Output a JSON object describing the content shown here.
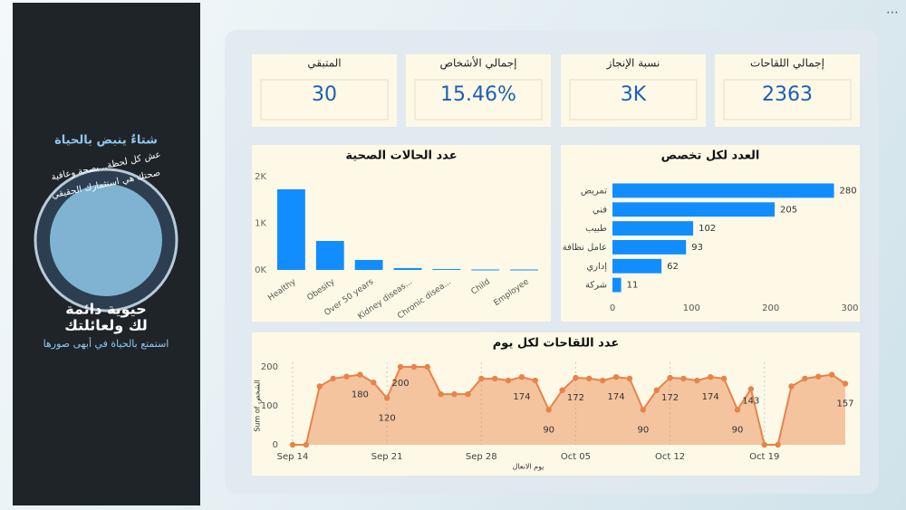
{
  "sidebar": {
    "headline": "شتاءٌ ينبض بالحياة",
    "tagline1": "عش كل لحظة.. بصحة وعافية",
    "tagline2": "صحتك هي استثمارك الحقيقي",
    "slogan1": "حيوية دائمة",
    "slogan2": "لك ولعائلتك",
    "footer": "استمتع بالحياة في أبهى صورها"
  },
  "kpis": [
    {
      "label": "المتبقي",
      "value": "30"
    },
    {
      "label": "إجمالي الأشخاص",
      "value": "15.46%"
    },
    {
      "label": "نسبة الإنجاز",
      "value": "3K"
    },
    {
      "label": "إجمالي اللقاحات",
      "value": "2363"
    }
  ],
  "chart_data": [
    {
      "type": "bar",
      "title": "عدد الحالات الصحية",
      "categories": [
        "Healthy",
        "Obesity",
        "Over 50 years",
        "Kidney diseas...",
        "Chronic disea...",
        "Child",
        "Employee"
      ],
      "values": [
        1728,
        621,
        214,
        40,
        20,
        10,
        10
      ],
      "color": "#118dff",
      "ylim": [
        0,
        2000
      ],
      "yticks": [
        {
          "value": 0,
          "label": "0K"
        },
        {
          "value": 1000,
          "label": "1K"
        },
        {
          "value": 2000,
          "label": "2K"
        }
      ]
    },
    {
      "type": "hbar",
      "title": "العدد لكل تخصص",
      "categories": [
        "تمريض",
        "فني",
        "طبيب",
        "عامل نظافة",
        "إداري",
        "شركة"
      ],
      "values": [
        280,
        205,
        102,
        93,
        62,
        11
      ],
      "color": "#118dff",
      "xlim": [
        0,
        300
      ],
      "xticks": [
        0,
        100,
        200,
        300
      ]
    },
    {
      "type": "area",
      "title": "عدد اللقاحات لكل يوم",
      "xlabel": "يوم الانعال",
      "ylabel": "Sum of الشخص",
      "color": "#e8834a",
      "categories": [
        "Sep 14",
        null,
        null,
        null,
        null,
        null,
        null,
        "Sep 21",
        null,
        null,
        null,
        null,
        null,
        null,
        "Sep 28",
        null,
        null,
        null,
        null,
        null,
        null,
        "Oct 05",
        null,
        null,
        null,
        null,
        null,
        null,
        "Oct 12",
        null,
        null,
        null,
        null,
        null,
        null,
        "Oct 19",
        null,
        null,
        null,
        null,
        null,
        null
      ],
      "values": [
        0,
        0,
        150,
        170,
        175,
        180,
        160,
        120,
        200,
        200,
        200,
        130,
        130,
        130,
        170,
        170,
        165,
        174,
        165,
        90,
        140,
        172,
        170,
        165,
        174,
        170,
        90,
        140,
        172,
        170,
        165,
        174,
        170,
        90,
        143,
        0,
        0,
        150,
        170,
        175,
        180,
        157
      ],
      "ylim": [
        0,
        200
      ],
      "yticks": [
        0,
        100,
        200
      ]
    }
  ]
}
